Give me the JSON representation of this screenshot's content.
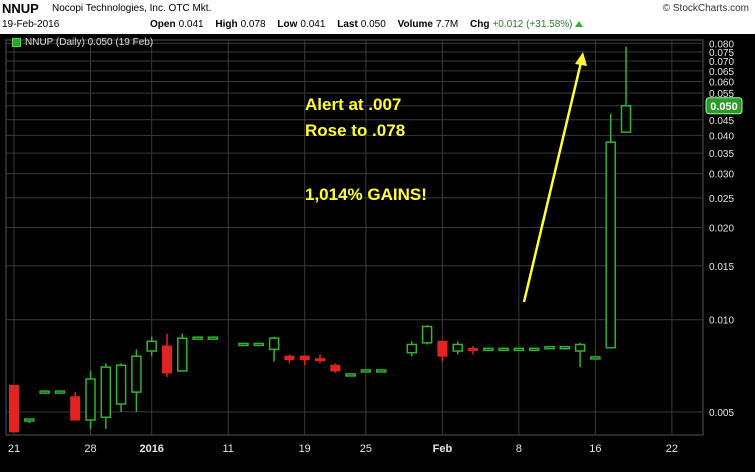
{
  "header": {
    "ticker": "NNUP",
    "company": "Nocopi Technologies, Inc. OTC Mkt.",
    "date": "19-Feb-2016",
    "source": "© StockCharts.com",
    "quote": [
      {
        "label": "Open",
        "value": "0.041"
      },
      {
        "label": "High",
        "value": "0.078"
      },
      {
        "label": "Low",
        "value": "0.041"
      },
      {
        "label": "Last",
        "value": "0.050"
      },
      {
        "label": "Volume",
        "value": "7.7M"
      },
      {
        "label": "Chg",
        "value": "+0.012 (+31.58%)"
      }
    ]
  },
  "legend": "NNUP (Daily) 0.050 (19 Feb)",
  "annotations": {
    "alert": "Alert at .007",
    "rose": "Rose to .078",
    "gains": "1,014% GAINS!"
  },
  "colors": {
    "up": "#2fb52f",
    "down": "#e02424",
    "grid": "#3a3a3a",
    "arrow": "#ffff33",
    "price_badge": "#2a9a2a"
  },
  "chart_data": {
    "type": "candlestick",
    "yscale": "log",
    "ylim": [
      0.0042,
      0.082
    ],
    "ytick_labels": [
      "0.005",
      "0.010",
      "0.015",
      "0.020",
      "0.025",
      "0.030",
      "0.035",
      "0.040",
      "0.045",
      "0.050",
      "0.055",
      "0.060",
      "0.065",
      "0.070",
      "0.075",
      "0.080"
    ],
    "xtick_labels": [
      "21",
      "28",
      "2016",
      "11",
      "19",
      "25",
      "Feb",
      "8",
      "16",
      "22"
    ],
    "last_price_label": "0.050",
    "candles": [
      {
        "o": 0.0061,
        "h": 0.0061,
        "l": 0.0043,
        "c": 0.0043
      },
      {
        "o": 0.0047,
        "h": 0.0047,
        "l": 0.0046,
        "c": 0.0047
      },
      {
        "o": 0.0058,
        "h": 0.0058,
        "l": 0.0058,
        "c": 0.0058
      },
      {
        "o": 0.0058,
        "h": 0.0058,
        "l": 0.0058,
        "c": 0.0058
      },
      {
        "o": 0.0056,
        "h": 0.0058,
        "l": 0.0047,
        "c": 0.0047
      },
      {
        "o": 0.0047,
        "h": 0.0068,
        "l": 0.0044,
        "c": 0.0064
      },
      {
        "o": 0.0048,
        "h": 0.0072,
        "l": 0.0044,
        "c": 0.007
      },
      {
        "o": 0.0053,
        "h": 0.0072,
        "l": 0.005,
        "c": 0.0071
      },
      {
        "o": 0.0058,
        "h": 0.008,
        "l": 0.005,
        "c": 0.0076
      },
      {
        "o": 0.0079,
        "h": 0.0088,
        "l": 0.0076,
        "c": 0.0085
      },
      {
        "o": 0.0082,
        "h": 0.009,
        "l": 0.0065,
        "c": 0.0067
      },
      {
        "o": 0.0068,
        "h": 0.009,
        "l": 0.0068,
        "c": 0.0087
      },
      {
        "o": 0.0087,
        "h": 0.0088,
        "l": 0.0087,
        "c": 0.0087
      },
      {
        "o": 0.0087,
        "h": 0.0087,
        "l": 0.0087,
        "c": 0.0087
      },
      {
        "o": 0.0083,
        "h": 0.0083,
        "l": 0.0083,
        "c": 0.0083
      },
      {
        "o": 0.0083,
        "h": 0.0083,
        "l": 0.0083,
        "c": 0.0083
      },
      {
        "o": 0.008,
        "h": 0.0088,
        "l": 0.0073,
        "c": 0.0087
      },
      {
        "o": 0.0076,
        "h": 0.0077,
        "l": 0.0072,
        "c": 0.0074
      },
      {
        "o": 0.0076,
        "h": 0.0076,
        "l": 0.0071,
        "c": 0.0074
      },
      {
        "o": 0.0074,
        "h": 0.0077,
        "l": 0.0072,
        "c": 0.0073
      },
      {
        "o": 0.0071,
        "h": 0.0072,
        "l": 0.0067,
        "c": 0.0068
      },
      {
        "o": 0.0066,
        "h": 0.0066,
        "l": 0.0066,
        "c": 0.0066
      },
      {
        "o": 0.0068,
        "h": 0.0068,
        "l": 0.0068,
        "c": 0.0068
      },
      {
        "o": 0.0068,
        "h": 0.0068,
        "l": 0.0068,
        "c": 0.0068
      },
      {
        "o": 0.0078,
        "h": 0.0085,
        "l": 0.0076,
        "c": 0.0083
      },
      {
        "o": 0.0084,
        "h": 0.0096,
        "l": 0.0083,
        "c": 0.0095
      },
      {
        "o": 0.0085,
        "h": 0.0085,
        "l": 0.0073,
        "c": 0.0076
      },
      {
        "o": 0.0079,
        "h": 0.0085,
        "l": 0.0077,
        "c": 0.0083
      },
      {
        "o": 0.008,
        "h": 0.0082,
        "l": 0.0077,
        "c": 0.0079
      },
      {
        "o": 0.008,
        "h": 0.008,
        "l": 0.008,
        "c": 0.008
      },
      {
        "o": 0.008,
        "h": 0.008,
        "l": 0.008,
        "c": 0.008
      },
      {
        "o": 0.008,
        "h": 0.008,
        "l": 0.008,
        "c": 0.008
      },
      {
        "o": 0.008,
        "h": 0.008,
        "l": 0.008,
        "c": 0.008
      },
      {
        "o": 0.0081,
        "h": 0.0081,
        "l": 0.0081,
        "c": 0.0081
      },
      {
        "o": 0.0081,
        "h": 0.0081,
        "l": 0.0081,
        "c": 0.0081
      },
      {
        "o": 0.0079,
        "h": 0.0084,
        "l": 0.007,
        "c": 0.0083
      },
      {
        "o": 0.0075,
        "h": 0.0075,
        "l": 0.0075,
        "c": 0.0075
      },
      {
        "o": 0.0081,
        "h": 0.047,
        "l": 0.0081,
        "c": 0.038
      },
      {
        "o": 0.041,
        "h": 0.078,
        "l": 0.041,
        "c": 0.05
      }
    ],
    "candle_index_positions": [
      0,
      1,
      2,
      3,
      4,
      5,
      6,
      7,
      8,
      9,
      10,
      11,
      12,
      13,
      15,
      16,
      17,
      18,
      19,
      20,
      21,
      22,
      23,
      24,
      26,
      27,
      28,
      29,
      30,
      31,
      32,
      33,
      34,
      35,
      36,
      37,
      38,
      39,
      40
    ],
    "xtick_index": [
      0,
      5,
      9,
      14,
      19,
      23,
      28,
      33,
      38,
      43
    ]
  }
}
